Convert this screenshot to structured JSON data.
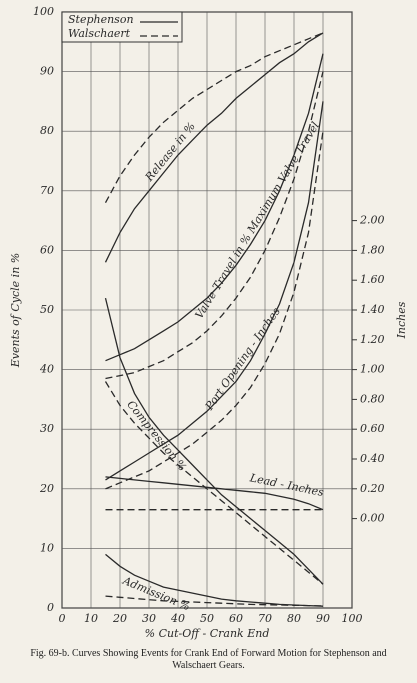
{
  "chart_data": {
    "type": "line",
    "x_label": "% Cut-Off - Crank End",
    "y_label": "Events of Cycle in %",
    "y2_label": "Inches",
    "caption": "Fig. 69-b.   Curves Showing Events for Crank End of Forward Motion for Stephenson and Walschaert Gears.",
    "xlim": [
      0,
      100
    ],
    "xticks": [
      0,
      10,
      20,
      30,
      40,
      50,
      60,
      70,
      80,
      90,
      100
    ],
    "ylim": [
      0,
      100
    ],
    "yticks": [
      0,
      10,
      20,
      30,
      40,
      50,
      60,
      70,
      80,
      90,
      100
    ],
    "y2lim": [
      -0.6,
      3.4
    ],
    "y2ticks": [
      {
        "value": 0,
        "label": "0.00"
      },
      {
        "value": 0.2,
        "label": "0.20"
      },
      {
        "value": 0.4,
        "label": "0.40"
      },
      {
        "value": 0.6,
        "label": "0.60"
      },
      {
        "value": 0.8,
        "label": "0.80"
      },
      {
        "value": 1,
        "label": "1.00"
      },
      {
        "value": 1.2,
        "label": "1.20"
      },
      {
        "value": 1.4,
        "label": "1.40"
      },
      {
        "value": 1.6,
        "label": "1.60"
      },
      {
        "value": 1.8,
        "label": "1.80"
      },
      {
        "value": 2,
        "label": "2.00"
      }
    ],
    "grid": true,
    "legend": "top-left",
    "annotations": [
      "Release in %",
      "Valve Travel in % Maximum Valve Travel",
      "Compression %",
      "Port Opening - Inches",
      "Lead - Inches",
      "Admission %"
    ],
    "x": [
      15,
      20,
      25,
      30,
      35,
      40,
      45,
      50,
      55,
      60,
      65,
      70,
      75,
      80,
      85,
      90
    ],
    "series": [
      {
        "name": "Stephenson",
        "color": "#2a2a2a",
        "dashed": false,
        "curves": [
          {
            "values": [
              58,
              63,
              67,
              70,
              73,
              76,
              78.5,
              81,
              83,
              85.5,
              87.5,
              89.5,
              91.5,
              93,
              95,
              96.5
            ]
          },
          {
            "values": [
              41.5,
              42.5,
              43.5,
              45,
              46.5,
              48,
              50,
              52,
              54.5,
              57.5,
              61,
              65,
              70,
              76,
              83,
              93
            ]
          },
          {
            "values": [
              52,
              42,
              36,
              32,
              29,
              26.5,
              24,
              21.5,
              19,
              17,
              15,
              13,
              11,
              9,
              6.5,
              4
            ]
          },
          {
            "axis": "y2",
            "values": [
              0.26,
              0.32,
              0.38,
              0.44,
              0.5,
              0.56,
              0.64,
              0.72,
              0.82,
              0.92,
              1.06,
              1.24,
              1.44,
              1.72,
              2.12,
              2.8
            ]
          },
          {
            "axis": "y2",
            "values": [
              0.28,
              0.27,
              0.26,
              0.25,
              0.24,
              0.23,
              0.22,
              0.21,
              0.2,
              0.19,
              0.18,
              0.17,
              0.15,
              0.13,
              0.1,
              0.06
            ]
          },
          {
            "values": [
              9,
              7,
              5.5,
              4.5,
              3.5,
              3,
              2.5,
              2,
              1.5,
              1.2,
              1,
              0.8,
              0.6,
              0.5,
              0.4,
              0.3
            ]
          }
        ]
      },
      {
        "name": "Walschaert",
        "color": "#2a2a2a",
        "dashed": true,
        "curves": [
          {
            "values": [
              68,
              72.5,
              76,
              79,
              81.5,
              83.5,
              85.5,
              87,
              88.5,
              90,
              91,
              92.5,
              93.5,
              94.5,
              95.5,
              96.5
            ]
          },
          {
            "values": [
              38.5,
              39,
              39.5,
              40.5,
              41.5,
              43,
              44.5,
              46.5,
              49,
              52,
              55.5,
              60,
              65.5,
              72,
              80,
              90
            ]
          },
          {
            "values": [
              38,
              34,
              31,
              28.5,
              26,
              24,
              22,
              20,
              18,
              16,
              14,
              12,
              10,
              8,
              6,
              4
            ]
          },
          {
            "axis": "y2",
            "values": [
              0.2,
              0.24,
              0.28,
              0.32,
              0.38,
              0.44,
              0.5,
              0.58,
              0.66,
              0.76,
              0.88,
              1.04,
              1.24,
              1.52,
              1.92,
              2.6
            ]
          },
          {
            "axis": "y2",
            "values": [
              0.06,
              0.06,
              0.06,
              0.06,
              0.06,
              0.06,
              0.06,
              0.06,
              0.06,
              0.06,
              0.06,
              0.06,
              0.06,
              0.06,
              0.06,
              0.06
            ]
          },
          {
            "values": [
              2,
              1.8,
              1.6,
              1.4,
              1.2,
              1.1,
              1,
              0.9,
              0.8,
              0.7,
              0.6,
              0.55,
              0.5,
              0.45,
              0.4,
              0.35
            ]
          }
        ]
      }
    ]
  }
}
